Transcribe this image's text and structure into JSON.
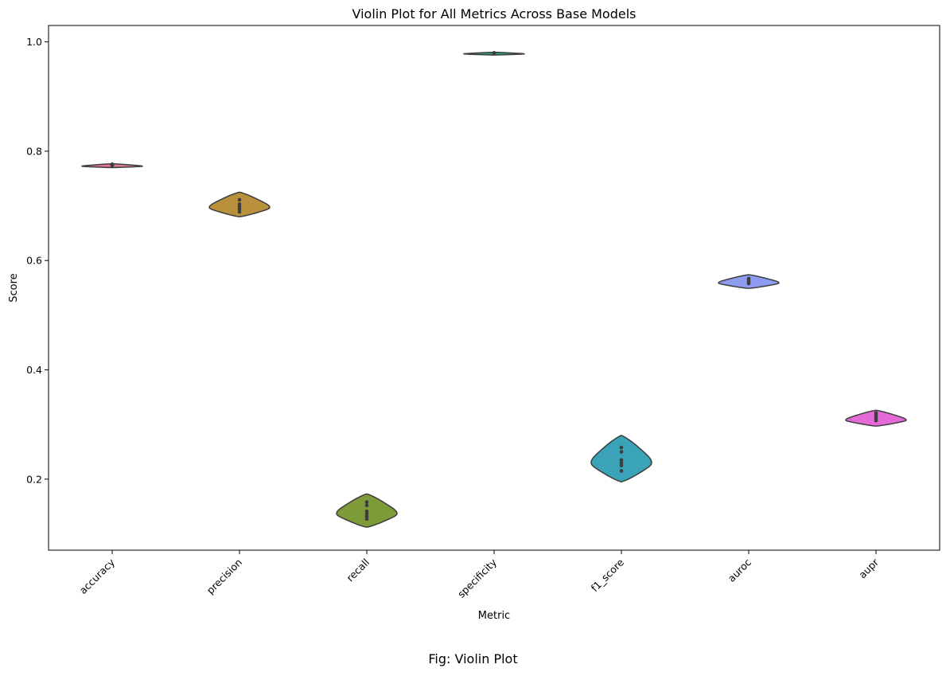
{
  "chart_data": {
    "type": "violin",
    "title": "Violin Plot for All Metrics Across Base Models",
    "xlabel": "Metric",
    "ylabel": "Score",
    "ylim": [
      0.07,
      1.03
    ],
    "yticks": [
      "0.2",
      "0.4",
      "0.6",
      "0.8",
      "1.0"
    ],
    "grid": false,
    "categories": [
      "accuracy",
      "precision",
      "recall",
      "specificity",
      "f1_score",
      "auroc",
      "aupr"
    ],
    "colors": [
      "#e07b91",
      "#b9913c",
      "#7e9b3a",
      "#2fa07d",
      "#3aa3b8",
      "#8d9cf0",
      "#e56ad8"
    ],
    "violins": [
      {
        "name": "accuracy",
        "min": 0.77,
        "max": 0.777,
        "center": 0.7725,
        "points": [
          0.774,
          0.775,
          0.776
        ]
      },
      {
        "name": "precision",
        "min": 0.68,
        "max": 0.725,
        "center": 0.697,
        "points": [
          0.689,
          0.694,
          0.699,
          0.703,
          0.711
        ]
      },
      {
        "name": "recall",
        "min": 0.112,
        "max": 0.173,
        "center": 0.137,
        "points": [
          0.127,
          0.132,
          0.137,
          0.141,
          0.152,
          0.158
        ]
      },
      {
        "name": "specificity",
        "min": 0.976,
        "max": 0.981,
        "center": 0.978,
        "points": [
          0.979,
          0.98
        ]
      },
      {
        "name": "f1_score",
        "min": 0.195,
        "max": 0.28,
        "center": 0.23,
        "points": [
          0.215,
          0.225,
          0.23,
          0.235,
          0.25,
          0.258
        ]
      },
      {
        "name": "auroc",
        "min": 0.549,
        "max": 0.574,
        "center": 0.559,
        "points": [
          0.558,
          0.561,
          0.564,
          0.567
        ]
      },
      {
        "name": "aupr",
        "min": 0.297,
        "max": 0.326,
        "center": 0.308,
        "points": [
          0.307,
          0.311,
          0.315,
          0.318,
          0.321
        ]
      }
    ]
  },
  "caption": "Fig: Violin Plot"
}
